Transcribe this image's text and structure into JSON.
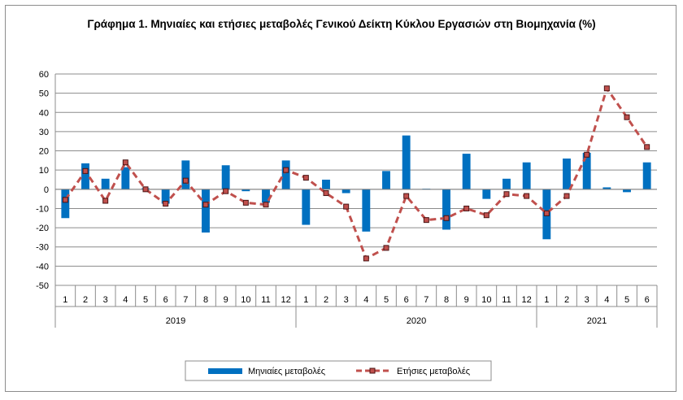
{
  "chart_data": {
    "type": "bar+line",
    "title": "Γράφημα 1. Μηνιαίες και ετήσιες μεταβολές  Γενικού Δείκτη Κύκλου Εργασιών στη Βιομηχανία (%)",
    "categories": [
      "1",
      "2",
      "3",
      "4",
      "5",
      "6",
      "7",
      "8",
      "9",
      "10",
      "11",
      "12",
      "1",
      "2",
      "3",
      "4",
      "5",
      "6",
      "7",
      "8",
      "9",
      "10",
      "11",
      "12",
      "1",
      "2",
      "3",
      "4",
      "5",
      "6"
    ],
    "year_groups": [
      {
        "label": "2019",
        "count": 12
      },
      {
        "label": "2020",
        "count": 12
      },
      {
        "label": "2021",
        "count": 6
      }
    ],
    "ylim": [
      -50,
      60
    ],
    "yticks": [
      -50,
      -40,
      -30,
      -20,
      -10,
      0,
      10,
      20,
      30,
      40,
      50,
      60
    ],
    "series": [
      {
        "name": "Μηνιαίες μεταβολές",
        "type": "bar",
        "color": "#0070c0",
        "values": [
          -15,
          13.5,
          5.5,
          11.5,
          0.5,
          -7.5,
          15,
          -22.5,
          12.5,
          -1,
          -7,
          15,
          -18.5,
          5,
          -2,
          -22,
          9.5,
          28,
          0.3,
          -21,
          18.5,
          -5,
          5.5,
          14,
          -26,
          16,
          19,
          1,
          -1.5,
          14
        ]
      },
      {
        "name": "Ετήσιες μεταβολές",
        "type": "line",
        "color": "#c0504d",
        "values": [
          -5.5,
          9.5,
          -6,
          14,
          0,
          -7.5,
          4.5,
          -8,
          -1,
          -7,
          -8,
          10,
          6,
          -2,
          -9,
          -36,
          -30.5,
          -3.5,
          -16,
          -15,
          -10,
          -13.5,
          -2.5,
          -3.5,
          -12.5,
          -3.5,
          18,
          52.5,
          37.5,
          22
        ]
      }
    ],
    "legend_position": "bottom",
    "grid": true
  }
}
